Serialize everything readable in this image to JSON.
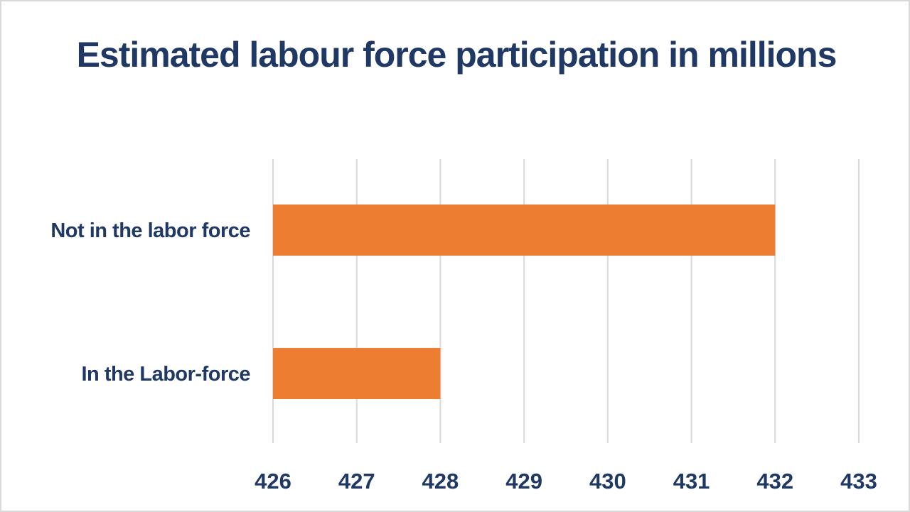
{
  "chart_data": {
    "type": "bar",
    "orientation": "horizontal",
    "title": "Estimated labour force participation in millions",
    "categories": [
      "Not in the labor force",
      "In the Labor-force"
    ],
    "values": [
      432,
      428
    ],
    "xlim": [
      426,
      433
    ],
    "xticks": [
      426,
      427,
      428,
      429,
      430,
      431,
      432,
      433
    ],
    "xlabel": "",
    "ylabel": "",
    "grid": "vertical",
    "legend": "none",
    "bar_color": "#ed7d31",
    "text_color": "#1f3864",
    "grid_color": "#d9d9d9"
  }
}
